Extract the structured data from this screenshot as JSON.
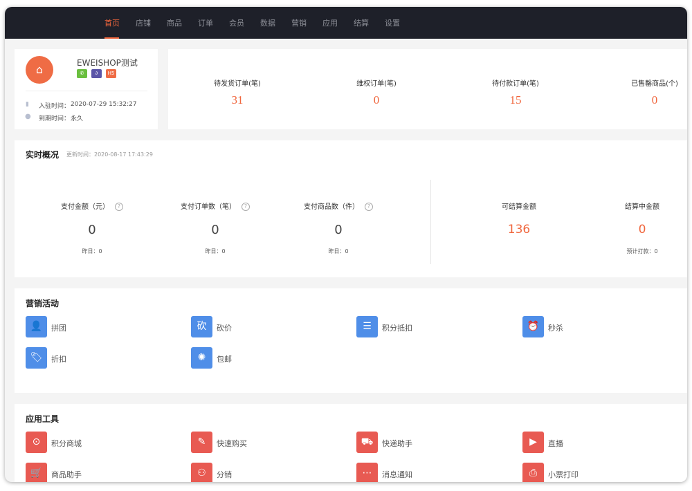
{
  "nav": {
    "items": [
      "首页",
      "店铺",
      "商品",
      "订单",
      "会员",
      "数据",
      "营销",
      "应用",
      "结算",
      "设置"
    ],
    "active": 0
  },
  "shop": {
    "name": "EWEISHOP测试",
    "tags": [
      {
        "icon": "wechat-icon"
      },
      {
        "icon": "miniprogram-icon"
      },
      {
        "label": "H5"
      }
    ],
    "join_label": "入驻时间：",
    "join_time": "2020-07-29 15:32:27",
    "expire_label": "到期时间：",
    "expire_time": "永久"
  },
  "stats": [
    {
      "label": "待发货订单(笔)",
      "value": "31"
    },
    {
      "label": "维权订单(笔)",
      "value": "0"
    },
    {
      "label": "待付款订单(笔)",
      "value": "15"
    },
    {
      "label": "已售罄商品(个)",
      "value": "0"
    }
  ],
  "realtime": {
    "title": "实时概况",
    "updated": "更新时间：2020-08-17 17:43:29",
    "help": "?",
    "metrics": [
      {
        "label": "支付金额（元）",
        "value": "0",
        "yesterday": "昨日：0"
      },
      {
        "label": "支付订单数（笔）",
        "value": "0",
        "yesterday": "昨日：0"
      },
      {
        "label": "支付商品数（件）",
        "value": "0",
        "yesterday": "昨日：0"
      }
    ],
    "settle": [
      {
        "label": "可结算金额",
        "value": "136"
      },
      {
        "label": "结算中金额",
        "value": "0",
        "sub": "预计打款：0"
      }
    ]
  },
  "marketing": {
    "title": "营销活动",
    "items": [
      {
        "label": "拼团",
        "icon": "group-buy-icon"
      },
      {
        "label": "砍价",
        "icon": "bargain-icon"
      },
      {
        "label": "积分抵扣",
        "icon": "coins-icon"
      },
      {
        "label": "秒杀",
        "icon": "alarm-clock-icon"
      },
      {
        "label": "折扣",
        "icon": "price-tag-icon"
      },
      {
        "label": "包邮",
        "icon": "free-shipping-badge-icon"
      }
    ]
  },
  "tools": {
    "title": "应用工具",
    "items": [
      {
        "label": "积分商城",
        "icon": "shopping-bag-icon"
      },
      {
        "label": "快速购买",
        "icon": "pen-icon"
      },
      {
        "label": "快递助手",
        "icon": "truck-icon"
      },
      {
        "label": "直播",
        "icon": "tv-icon"
      },
      {
        "label": "商品助手",
        "icon": "basket-icon"
      },
      {
        "label": "分销",
        "icon": "hierarchy-icon"
      },
      {
        "label": "消息通知",
        "icon": "message-icon"
      },
      {
        "label": "小票打印",
        "icon": "printer-icon"
      }
    ]
  },
  "colors": {
    "accent": "#f0663d",
    "nav_bg": "#1e2029",
    "marketing_icon": "#4f8ee8",
    "tool_icon": "#e85a52"
  }
}
